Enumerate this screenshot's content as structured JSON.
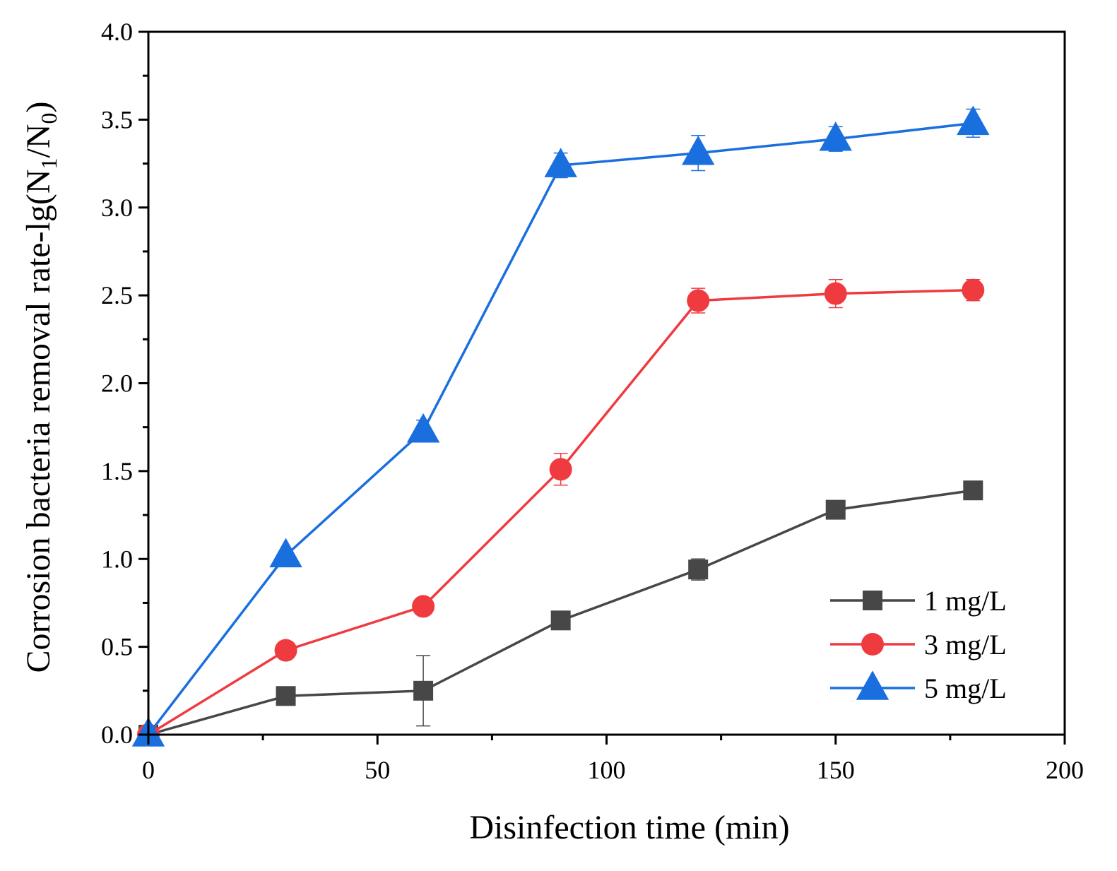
{
  "chart_data": {
    "type": "line",
    "title": "",
    "xlabel": "Disinfection time (min)",
    "ylabel": {
      "main": "Corrosion bacteria removal rate-lg(N",
      "sub1": "1",
      "mid": "/N",
      "sub2": "0",
      "end": ")"
    },
    "xlim": [
      0,
      200
    ],
    "ylim": [
      0,
      4.0
    ],
    "x_ticks": [
      0,
      50,
      100,
      150,
      200
    ],
    "x_tick_labels": [
      "0",
      "50",
      "100",
      "150",
      "200"
    ],
    "y_ticks": [
      0,
      0.5,
      1.0,
      1.5,
      2.0,
      2.5,
      3.0,
      3.5,
      4.0
    ],
    "y_tick_labels": [
      "0.0",
      "0.5",
      "1.0",
      "1.5",
      "2.0",
      "2.5",
      "3.0",
      "3.5",
      "4.0"
    ],
    "grid": false,
    "legend_position": "bottom-right",
    "x": [
      0,
      30,
      60,
      90,
      120,
      150,
      180
    ],
    "series": [
      {
        "name": "1 mg/L",
        "color": "#474747",
        "marker": "square",
        "values": [
          0.0,
          0.22,
          0.25,
          0.65,
          0.94,
          1.28,
          1.39
        ],
        "errors": [
          0.0,
          0.02,
          0.2,
          0.02,
          0.06,
          0.02,
          0.02
        ]
      },
      {
        "name": "3 mg/L",
        "color": "#ef3a40",
        "marker": "circle",
        "values": [
          0.0,
          0.48,
          0.73,
          1.51,
          2.47,
          2.51,
          2.53
        ],
        "errors": [
          0.0,
          0.02,
          0.03,
          0.09,
          0.07,
          0.08,
          0.06
        ]
      },
      {
        "name": "5 mg/L",
        "color": "#1a6fdf",
        "marker": "triangle",
        "values": [
          0.0,
          1.02,
          1.73,
          3.24,
          3.31,
          3.39,
          3.48
        ],
        "errors": [
          0.0,
          0.02,
          0.06,
          0.07,
          0.1,
          0.07,
          0.08
        ]
      }
    ]
  }
}
